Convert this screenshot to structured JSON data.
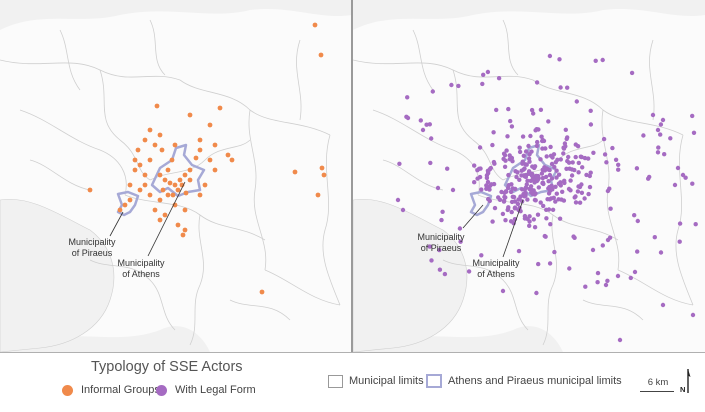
{
  "maps": {
    "left": {
      "label_piraeus": [
        "Municipality",
        "of Piraeus"
      ],
      "label_athens": [
        "Municipality",
        "of Athens"
      ],
      "point_color": "#f08a4b"
    },
    "right": {
      "label_piraeus": [
        "Municipality",
        "of Piraeus"
      ],
      "label_athens": [
        "Municipality",
        "of Athens"
      ],
      "point_color": "#a56bc2"
    }
  },
  "legend": {
    "title": "Typology of SSE Actors",
    "informal_label": "Informal Groups",
    "informal_color": "#f08a4b",
    "legal_label": "With Legal Form",
    "legal_color": "#a56bc2",
    "municipal_label": "Municipal limits",
    "athens_piraeus_label": "Athens and Piraeus municipal limits",
    "athens_piraeus_color": "#a6a9d6"
  },
  "scale": {
    "label": "6 km"
  },
  "north": {
    "label": "N"
  }
}
